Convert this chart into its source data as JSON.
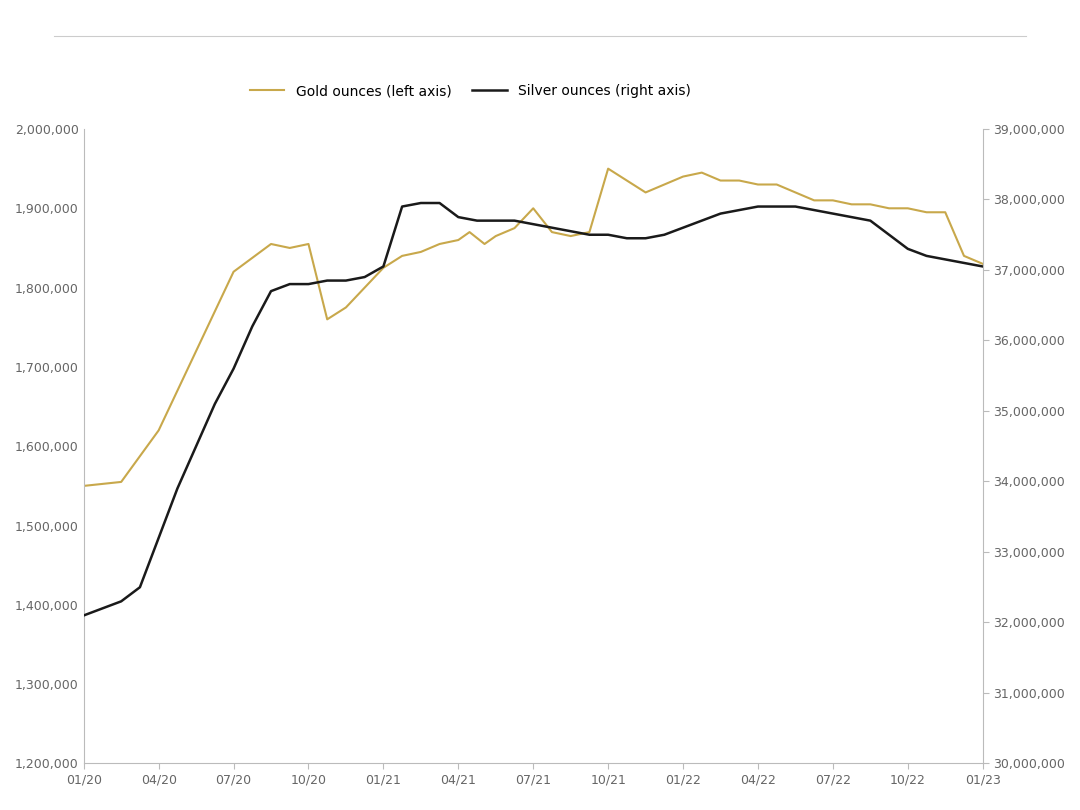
{
  "gold_color": "#C8A84B",
  "silver_color": "#1a1a1a",
  "background_color": "#ffffff",
  "legend_gold": "Gold ounces (left axis)",
  "legend_silver": "Silver ounces (right axis)",
  "gold_ylim": [
    1200000,
    2000000
  ],
  "silver_ylim": [
    30000000,
    39000000
  ],
  "gold_yticks": [
    1200000,
    1300000,
    1400000,
    1500000,
    1600000,
    1700000,
    1800000,
    1900000,
    2000000
  ],
  "silver_yticks": [
    30000000,
    31000000,
    32000000,
    33000000,
    34000000,
    35000000,
    36000000,
    37000000,
    38000000,
    39000000
  ],
  "xtick_labels": [
    "01/20",
    "04/20",
    "07/20",
    "10/20",
    "01/21",
    "04/21",
    "07/21",
    "10/21",
    "01/22",
    "04/22",
    "07/22",
    "10/22",
    "01/23"
  ],
  "gold_data_x": [
    0,
    1,
    2,
    3,
    4,
    5,
    5.5,
    6,
    6.5,
    7,
    7.5,
    8,
    8.5,
    9,
    9.5,
    10,
    10.3,
    10.7,
    11,
    11.5,
    12,
    12.5,
    13,
    13.5,
    14,
    14.5,
    15,
    15.5,
    16,
    16.5,
    17,
    17.5,
    18,
    18.5,
    19,
    19.5,
    20,
    20.5,
    21,
    21.5,
    22,
    22.5,
    23,
    23.5,
    24
  ],
  "gold_data_y": [
    1550000,
    1555000,
    1620000,
    1720000,
    1820000,
    1855000,
    1850000,
    1855000,
    1760000,
    1775000,
    1800000,
    1825000,
    1840000,
    1845000,
    1855000,
    1860000,
    1870000,
    1855000,
    1865000,
    1875000,
    1900000,
    1870000,
    1865000,
    1870000,
    1950000,
    1935000,
    1920000,
    1930000,
    1940000,
    1945000,
    1935000,
    1935000,
    1930000,
    1930000,
    1920000,
    1910000,
    1910000,
    1905000,
    1905000,
    1900000,
    1900000,
    1895000,
    1895000,
    1840000,
    1830000
  ],
  "silver_data_x": [
    0,
    1,
    1.5,
    2,
    2.5,
    3,
    3.5,
    4,
    4.5,
    5,
    5.5,
    6,
    6.5,
    7,
    7.5,
    8,
    8.5,
    9,
    9.5,
    10,
    10.5,
    11,
    11.5,
    12,
    12.5,
    13,
    13.5,
    14,
    14.5,
    15,
    15.5,
    16,
    16.5,
    17,
    17.5,
    18,
    18.5,
    19,
    19.5,
    20,
    20.5,
    21,
    21.5,
    22,
    22.5,
    23,
    23.5,
    24
  ],
  "silver_data_y": [
    32100000,
    32300000,
    32500000,
    33200000,
    33900000,
    34500000,
    35100000,
    35600000,
    36200000,
    36700000,
    36800000,
    36800000,
    36850000,
    36850000,
    36900000,
    37050000,
    37900000,
    37950000,
    37950000,
    37750000,
    37700000,
    37700000,
    37700000,
    37650000,
    37600000,
    37550000,
    37500000,
    37500000,
    37450000,
    37450000,
    37500000,
    37600000,
    37700000,
    37800000,
    37850000,
    37900000,
    37900000,
    37900000,
    37850000,
    37800000,
    37750000,
    37700000,
    37500000,
    37300000,
    37200000,
    37150000,
    37100000,
    37050000
  ]
}
